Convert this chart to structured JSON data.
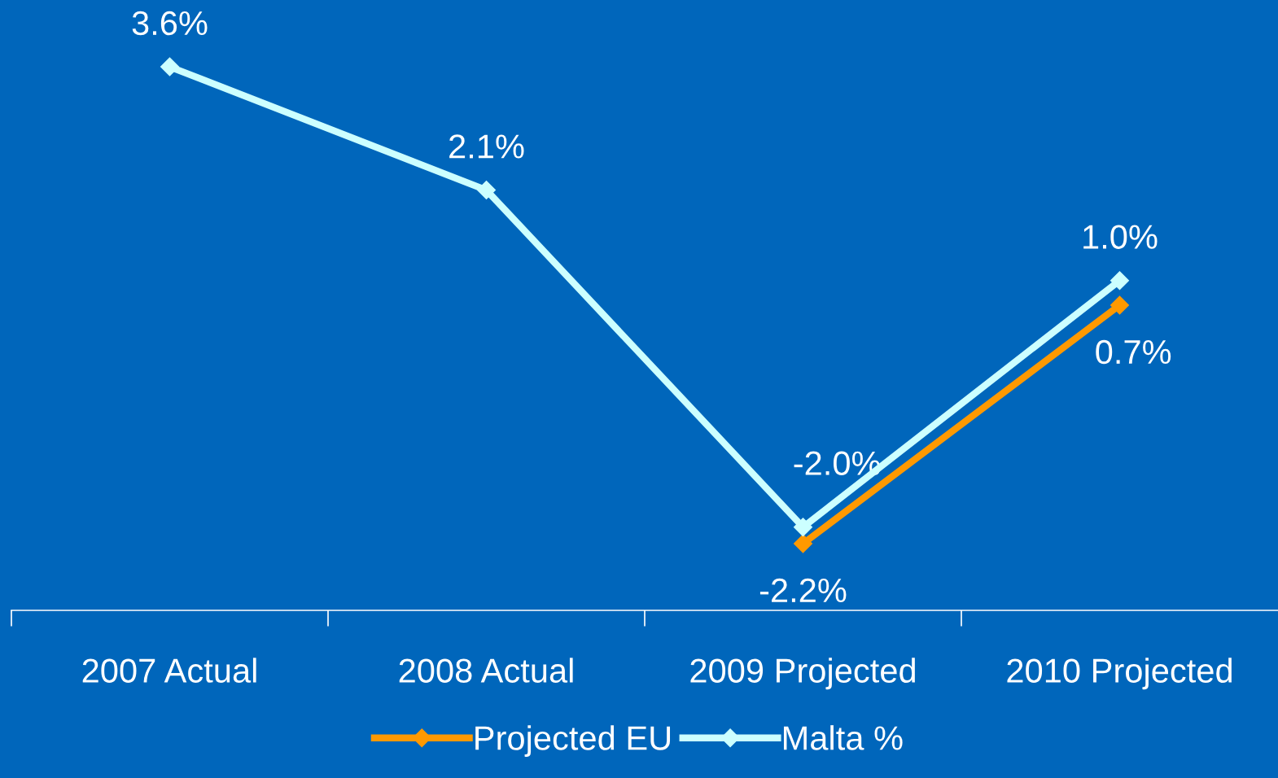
{
  "chart_data": {
    "type": "line",
    "categories": [
      "2007 Actual",
      "2008 Actual",
      "2009 Projected",
      "2010 Projected"
    ],
    "series": [
      {
        "name": "Projected EU",
        "color": "#ff9900",
        "values": [
          null,
          null,
          -2.2,
          0.7
        ],
        "value_labels": [
          null,
          null,
          "-2.2%",
          "0.7%"
        ]
      },
      {
        "name": "Malta %",
        "color": "#ccffff",
        "values": [
          3.6,
          2.1,
          -2.0,
          1.0
        ],
        "value_labels": [
          "3.6%",
          "2.1%",
          "-2.0%",
          "1.0%"
        ]
      }
    ],
    "tick_labels": "x",
    "grid": false,
    "legend": "bottom",
    "marker": "diamond",
    "line_style": "solid"
  }
}
